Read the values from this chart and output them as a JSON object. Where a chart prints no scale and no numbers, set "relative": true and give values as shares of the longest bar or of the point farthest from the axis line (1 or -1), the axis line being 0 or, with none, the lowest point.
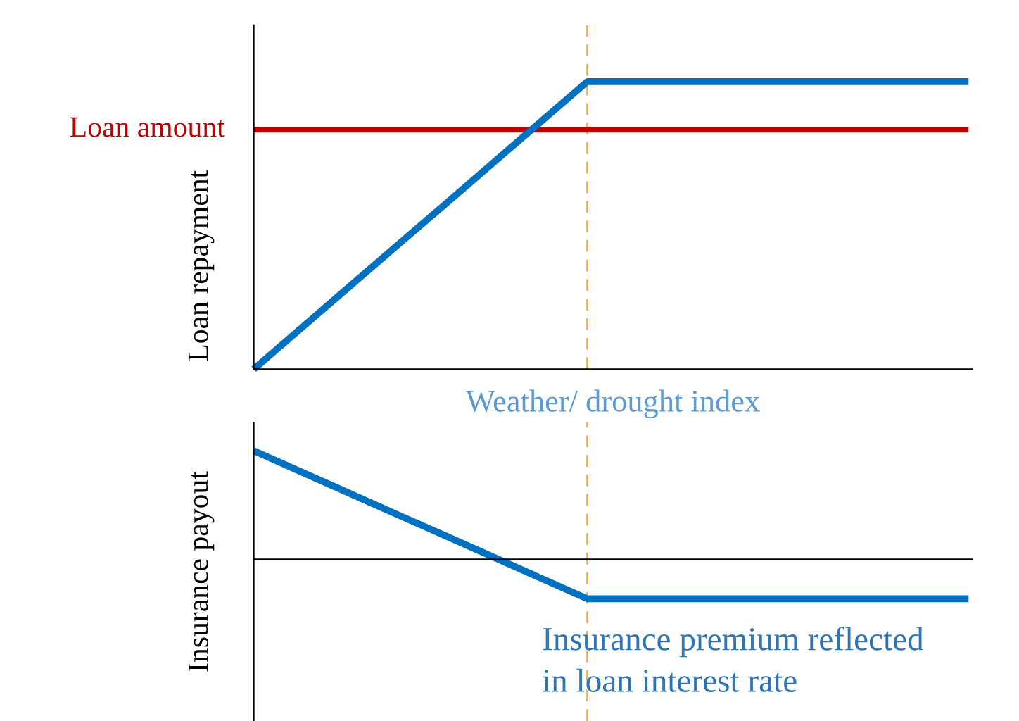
{
  "chart_data": [
    {
      "type": "line",
      "relative": true,
      "ylabel": "Loan repayment",
      "xlabel": "Weather/ drought index",
      "categories": [
        null,
        null,
        null,
        null,
        null,
        null,
        null,
        null,
        null,
        null,
        null,
        null,
        null,
        null,
        null,
        null
      ],
      "legend": false,
      "grid": false,
      "series": [
        {
          "name": "Loan amount",
          "color": "#c00000",
          "values": [
            0.833,
            0.833,
            0.833,
            0.833,
            0.833,
            0.833,
            0.833,
            0.833,
            0.833,
            0.833,
            0.833,
            0.833,
            0.833,
            0.833,
            0.833,
            0.833
          ]
        },
        {
          "color": "#0070c0",
          "values": [
            0,
            0.143,
            0.286,
            0.429,
            0.571,
            0.714,
            0.857,
            1,
            1,
            1,
            1,
            1,
            1,
            1,
            1,
            1
          ]
        }
      ]
    },
    {
      "type": "line",
      "relative": true,
      "ylabel": "Insurance payout",
      "categories": [
        null,
        null,
        null,
        null,
        null,
        null,
        null,
        null,
        null,
        null,
        null,
        null,
        null,
        null,
        null,
        null
      ],
      "legend": false,
      "grid": false,
      "series": [
        {
          "color": "#0070c0",
          "values": [
            1,
            0.805,
            0.61,
            0.415,
            0.221,
            0.026,
            -0.169,
            -0.364,
            -0.364,
            -0.364,
            -0.364,
            -0.364,
            -0.364,
            -0.364,
            -0.364,
            -0.364
          ]
        }
      ],
      "annotations": [
        "Insurance premium reflected\nin loan interest rate"
      ]
    }
  ]
}
